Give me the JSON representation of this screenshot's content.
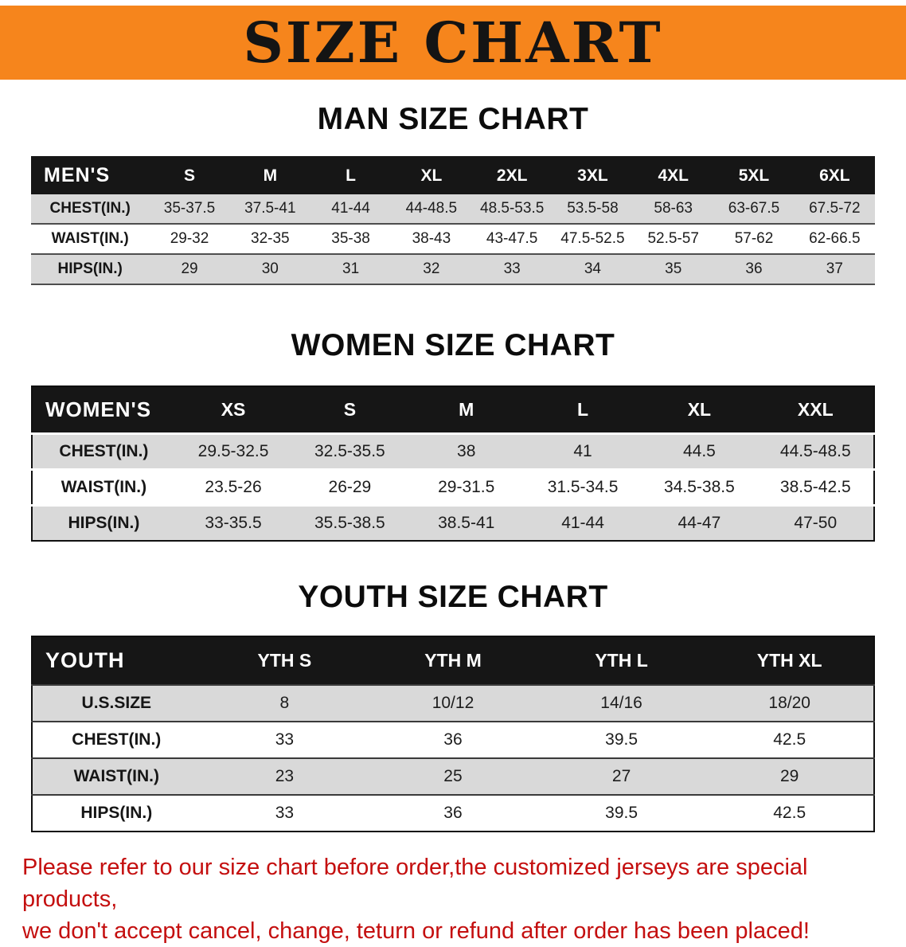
{
  "banner": {
    "title": "SIZE CHART",
    "bg_color": "#f6851c",
    "text_color": "#141414"
  },
  "sections": [
    {
      "id": "men",
      "heading": "MAN SIZE CHART",
      "table": {
        "header": [
          "MEN'S",
          "S",
          "M",
          "L",
          "XL",
          "2XL",
          "3XL",
          "4XL",
          "5XL",
          "6XL"
        ],
        "rows": [
          [
            "CHEST(IN.)",
            "35-37.5",
            "37.5-41",
            "41-44",
            "44-48.5",
            "48.5-53.5",
            "53.5-58",
            "58-63",
            "63-67.5",
            "67.5-72"
          ],
          [
            "WAIST(IN.)",
            "29-32",
            "32-35",
            "35-38",
            "38-43",
            "43-47.5",
            "47.5-52.5",
            "52.5-57",
            "57-62",
            "62-66.5"
          ],
          [
            "HIPS(IN.)",
            "29",
            "30",
            "31",
            "32",
            "33",
            "34",
            "35",
            "36",
            "37"
          ]
        ]
      }
    },
    {
      "id": "women",
      "heading": "WOMEN SIZE CHART",
      "table": {
        "header": [
          "WOMEN'S",
          "XS",
          "S",
          "M",
          "L",
          "XL",
          "XXL"
        ],
        "rows": [
          [
            "CHEST(IN.)",
            "29.5-32.5",
            "32.5-35.5",
            "38",
            "41",
            "44.5",
            "44.5-48.5"
          ],
          [
            "WAIST(IN.)",
            "23.5-26",
            "26-29",
            "29-31.5",
            "31.5-34.5",
            "34.5-38.5",
            "38.5-42.5"
          ],
          [
            "HIPS(IN.)",
            "33-35.5",
            "35.5-38.5",
            "38.5-41",
            "41-44",
            "44-47",
            "47-50"
          ]
        ]
      }
    },
    {
      "id": "youth",
      "heading": "YOUTH SIZE CHART",
      "table": {
        "header": [
          "YOUTH",
          "YTH S",
          "YTH M",
          "YTH L",
          "YTH XL"
        ],
        "rows": [
          [
            "U.S.SIZE",
            "8",
            "10/12",
            "14/16",
            "18/20"
          ],
          [
            "CHEST(IN.)",
            "33",
            "36",
            "39.5",
            "42.5"
          ],
          [
            "WAIST(IN.)",
            "23",
            "25",
            "27",
            "29"
          ],
          [
            "HIPS(IN.)",
            "33",
            "36",
            "39.5",
            "42.5"
          ]
        ]
      }
    }
  ],
  "disclaimer": {
    "line1": "Please refer to our size chart before order,the customized jerseys are special products,",
    "line2": "we don't accept cancel, change, teturn or refund after order has been placed!",
    "text_color": "#c40f0f"
  },
  "colors": {
    "header_row_bg": "#161616",
    "stripe_row_bg": "#d9d9d9",
    "banner_orange": "#f6851c"
  }
}
